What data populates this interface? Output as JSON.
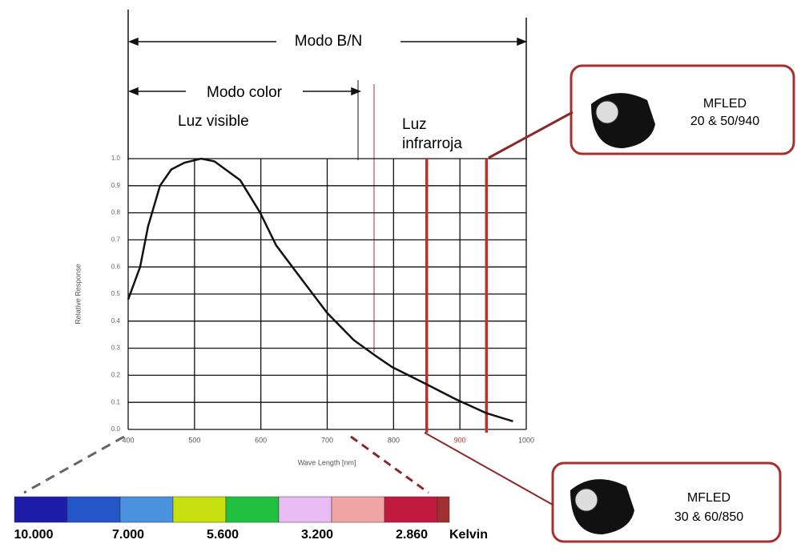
{
  "chart_data": {
    "type": "line",
    "x_label": "Wave Length [nm]",
    "y_label": "Relative Response",
    "xlim": [
      400,
      1000
    ],
    "ylim": [
      0,
      1
    ],
    "xticks": [
      400,
      500,
      600,
      700,
      800,
      900,
      1000
    ],
    "yticks": [
      {
        "value": 0,
        "label": "0.0"
      },
      0.1,
      0.2,
      0.3,
      0.4,
      0.5,
      0.6,
      0.7,
      0.8,
      0.9,
      {
        "value": 1,
        "label": "1.0"
      }
    ],
    "grid": true,
    "series": [
      {
        "color": "#111111",
        "x": [
          400,
          418,
          430,
          448,
          465,
          485,
          510,
          530,
          569,
          599,
          623,
          666,
          700,
          740,
          774,
          798,
          847,
          895,
          940,
          980
        ],
        "values": [
          0.48,
          0.6,
          0.75,
          0.9,
          0.96,
          0.985,
          1.0,
          0.99,
          0.92,
          0.8,
          0.68,
          0.54,
          0.43,
          0.33,
          0.27,
          0.23,
          0.17,
          0.11,
          0.06,
          0.03
        ]
      }
    ],
    "infrared_lines": {
      "color": "#c0302a",
      "x": [
        850,
        940
      ]
    },
    "annotations": {
      "bn_mode": "Modo B/N",
      "color_mode": "Modo color",
      "visible": "Luz visible",
      "infrared": [
        "Luz",
        "infrarroja"
      ]
    },
    "callouts": [
      {
        "title": "MFLED",
        "model": "20 & 50/940"
      },
      {
        "title": "MFLED",
        "model": "30 & 60/850"
      }
    ],
    "color_scale": {
      "colors": [
        "#1c1ca8",
        "#2456c8",
        "#4a92e0",
        "#c8e010",
        "#22c040",
        "#e8bcf2",
        "#f0a4a4",
        "#c01a40",
        "#a03030"
      ],
      "labels": [
        "10.000",
        "7.000",
        "5.600",
        "3.200",
        "2.860"
      ],
      "unit": "Kelvin"
    }
  }
}
